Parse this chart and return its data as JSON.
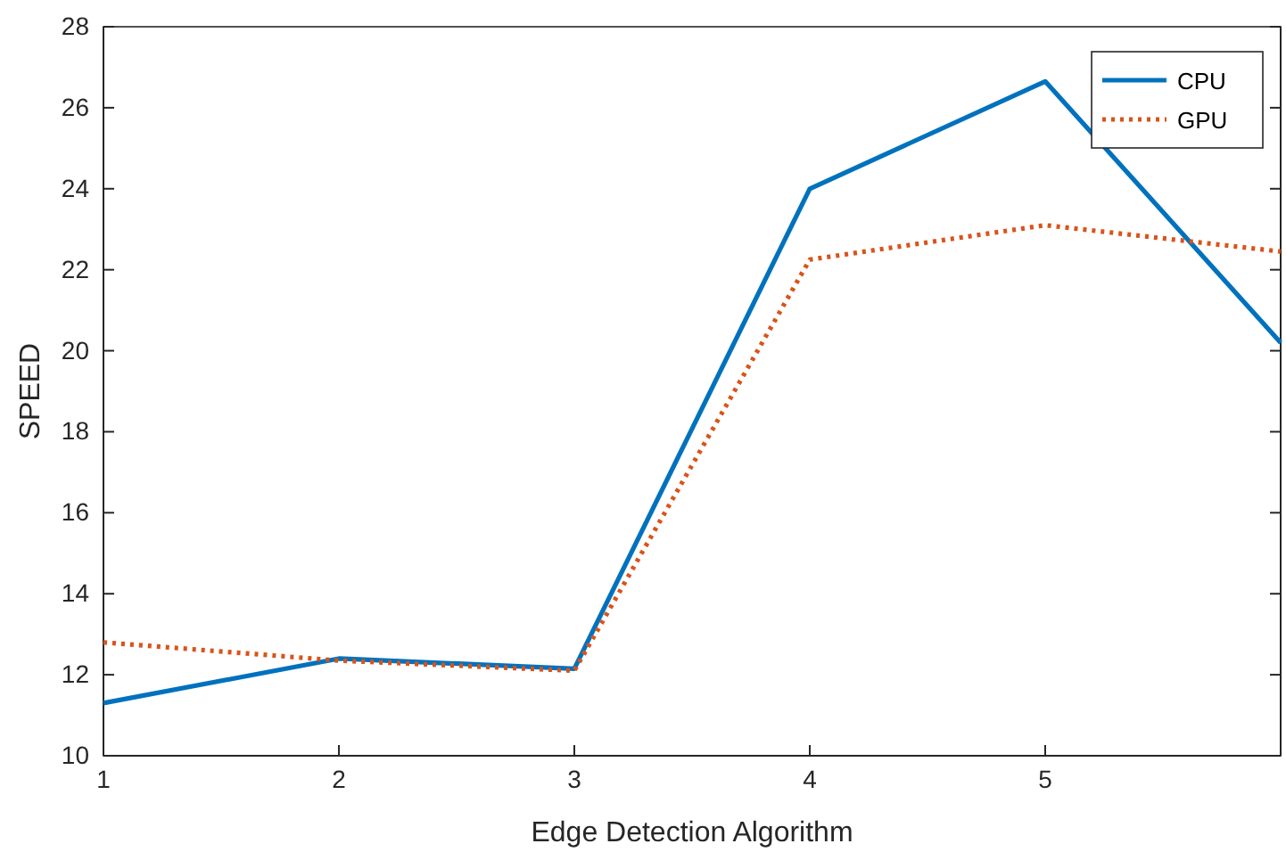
{
  "chart_data": {
    "type": "line",
    "xlabel": "Edge Detection Algorithm",
    "ylabel": "SPEED",
    "x": [
      1,
      2,
      3,
      4,
      5,
      6
    ],
    "xlim": [
      1,
      6
    ],
    "xticks": [
      1,
      2,
      3,
      4,
      5
    ],
    "ylim": [
      10,
      28
    ],
    "yticks": [
      10,
      12,
      14,
      16,
      18,
      20,
      22,
      24,
      26,
      28
    ],
    "grid": false,
    "legend": "top right",
    "marker": "none",
    "series": [
      {
        "name": "CPU",
        "color": "#0072bd",
        "line_style": "solid",
        "values": [
          11.3,
          12.4,
          12.15,
          24,
          26.65,
          20.2
        ]
      },
      {
        "name": "GPU",
        "color": "#d95319",
        "line_style": "dotted",
        "values": [
          12.8,
          12.35,
          12.1,
          22.25,
          23.1,
          22.45
        ]
      }
    ]
  }
}
